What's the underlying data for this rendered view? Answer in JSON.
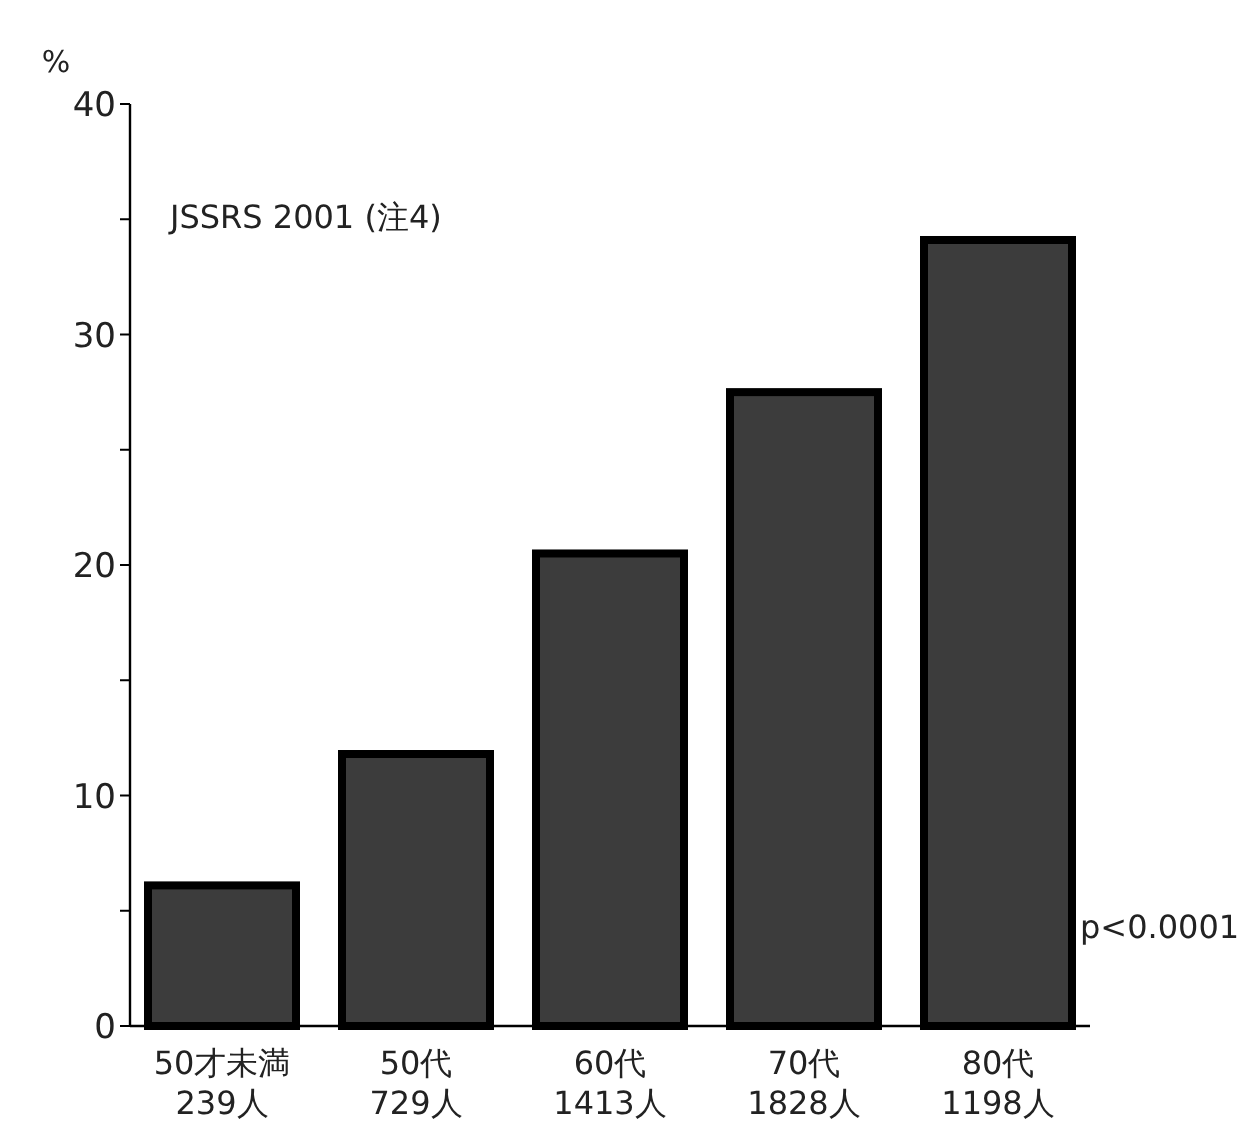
{
  "chart_data": {
    "type": "bar",
    "ylabel": "%",
    "categories": [
      "50才未満\n239人",
      "50代\n729人",
      "60代\n1413人",
      "70代\n1828人",
      "80代\n1198人"
    ],
    "values": [
      6.1,
      11.8,
      20.5,
      27.5,
      34.1
    ],
    "color": "#3c3c3c",
    "ylim": [
      0,
      40
    ],
    "yticks": [
      0,
      {
        "value": 5,
        "label": null
      },
      10,
      {
        "value": 15,
        "label": null
      },
      20,
      {
        "value": 25,
        "label": null
      },
      30,
      {
        "value": 35,
        "label": null
      },
      40
    ],
    "annotations": [
      "JSSRS 2001 (注4)",
      "p<0.0001"
    ],
    "grid": false
  }
}
